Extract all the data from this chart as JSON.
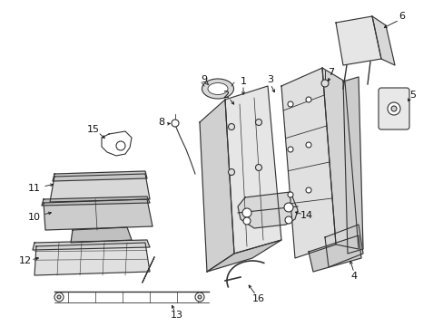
{
  "background_color": "#ffffff",
  "line_color": "#333333",
  "text_color": "#111111",
  "fig_width": 4.89,
  "fig_height": 3.6,
  "dpi": 100
}
